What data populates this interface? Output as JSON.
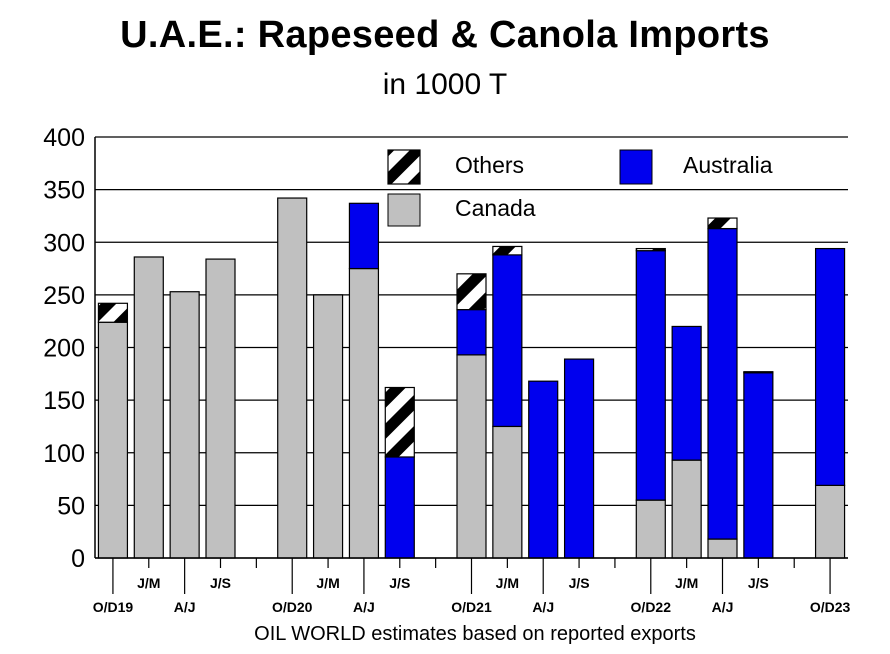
{
  "colors": {
    "Canada": "#c0c0c0",
    "Australia": "#0000ee",
    "Others": "hatch-black-white"
  },
  "chart_data": {
    "type": "bar",
    "stacked": true,
    "title": "U.A.E.: Rapeseed & Canola Imports",
    "subtitle": "in 1000 T",
    "source_note": "OIL WORLD estimates based on reported exports",
    "ylim": [
      0,
      400
    ],
    "yticks": [
      0,
      50,
      100,
      150,
      200,
      250,
      300,
      350,
      400
    ],
    "grid": true,
    "legend_placement": "top-right",
    "legend": [
      "Others",
      "Australia",
      "Canada"
    ],
    "categories": [
      "O/D19",
      "J/M",
      "A/J",
      "J/S",
      "",
      "O/D20",
      "J/M",
      "A/J",
      "J/S",
      "",
      "O/D21",
      "J/M",
      "A/J",
      "J/S",
      "",
      "O/D22",
      "J/M",
      "A/J",
      "J/S",
      "",
      "O/D23"
    ],
    "series": [
      {
        "name": "Canada",
        "values": [
          224,
          286,
          253,
          284,
          null,
          342,
          250,
          275,
          0,
          null,
          193,
          125,
          0,
          0,
          null,
          55,
          93,
          18,
          0,
          null,
          69
        ]
      },
      {
        "name": "Australia",
        "values": [
          0,
          0,
          0,
          0,
          null,
          0,
          0,
          62,
          96,
          null,
          43,
          163,
          168,
          189,
          null,
          237,
          127,
          295,
          176,
          null,
          225
        ]
      },
      {
        "name": "Others",
        "values": [
          18,
          0,
          0,
          0,
          null,
          0,
          0,
          0,
          66,
          null,
          34,
          8,
          0,
          0,
          null,
          2,
          0,
          10,
          1,
          null,
          0
        ]
      }
    ]
  }
}
